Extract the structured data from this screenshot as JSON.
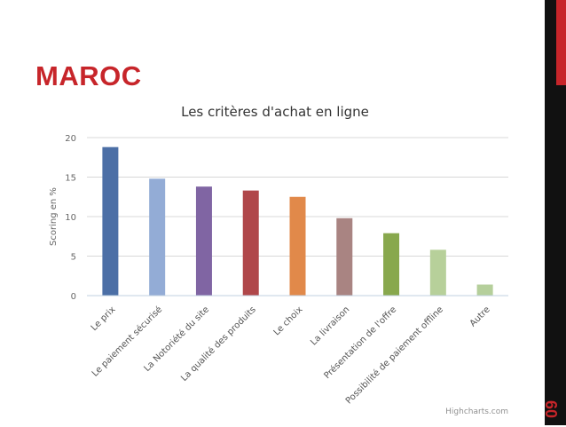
{
  "slide": {
    "title": "MAROC",
    "page_number": "60"
  },
  "colors": {
    "accent": "#c7252a",
    "side_bar": "#111111",
    "gridline": "#d8d8d8"
  },
  "chart_data": {
    "type": "bar",
    "title": "Les critères d'achat en ligne",
    "xlabel": "",
    "ylabel": "Scoring en %",
    "ylim": [
      0,
      20
    ],
    "yticks": [
      0,
      5,
      10,
      15,
      20
    ],
    "grid": true,
    "credits": "Highcharts.com",
    "categories": [
      "Le prix",
      "Le paiement sécurisé",
      "La Notoriété du site",
      "La qualité des produits",
      "Le choix",
      "La livraison",
      "Présentation de l'offre",
      "Possibilité de paiement offline",
      "Autre"
    ],
    "values": [
      18.8,
      14.8,
      13.8,
      13.3,
      12.5,
      9.8,
      7.9,
      5.8,
      1.4
    ],
    "bar_colors": [
      "#4c6fa6",
      "#93acd6",
      "#8065a3",
      "#b0474a",
      "#e1894a",
      "#a98482",
      "#88a84d",
      "#b7d09a",
      "#b5cf9b"
    ]
  }
}
